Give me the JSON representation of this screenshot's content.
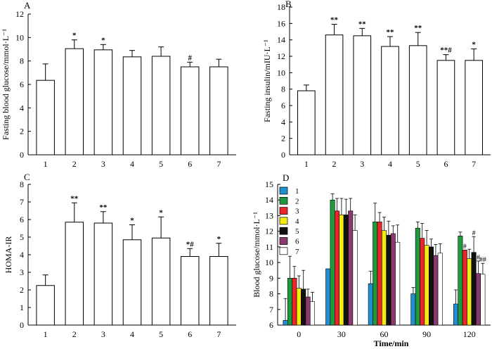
{
  "chart_data": [
    {
      "panel": "A",
      "type": "bar",
      "categories": [
        "1",
        "2",
        "3",
        "4",
        "5",
        "6",
        "7"
      ],
      "values": [
        6.35,
        9.05,
        8.95,
        8.35,
        8.4,
        7.5,
        7.5
      ],
      "errors": [
        1.4,
        0.75,
        0.45,
        0.55,
        0.8,
        0.4,
        0.65
      ],
      "annotations": [
        "",
        "*",
        "*",
        "",
        "",
        "#",
        ""
      ],
      "xlabel": "",
      "ylabel": "Fasting blood glucose/mmol·L⁻¹",
      "ylim": [
        0,
        12
      ],
      "yticks": [
        "0",
        "2",
        "4",
        "6",
        "8",
        "10",
        "12"
      ]
    },
    {
      "panel": "B",
      "type": "bar",
      "categories": [
        "1",
        "2",
        "3",
        "4",
        "5",
        "6",
        "7"
      ],
      "values": [
        7.8,
        14.6,
        14.5,
        13.2,
        13.3,
        11.5,
        11.5
      ],
      "errors": [
        0.7,
        1.3,
        0.9,
        1.2,
        1.6,
        0.7,
        1.4
      ],
      "annotations": [
        "",
        "**",
        "**",
        "**",
        "**",
        "**#",
        "*"
      ],
      "xlabel": "",
      "ylabel": "Fasting insulin/mIU·L⁻¹",
      "ylim": [
        0,
        18
      ],
      "yticks": [
        "0",
        "2",
        "4",
        "6",
        "8",
        "10",
        "12",
        "14",
        "16",
        "18"
      ]
    },
    {
      "panel": "C",
      "type": "bar",
      "categories": [
        "1",
        "2",
        "3",
        "4",
        "5",
        "6",
        "7"
      ],
      "values": [
        2.25,
        5.85,
        5.8,
        4.85,
        4.95,
        3.9,
        3.9
      ],
      "errors": [
        0.6,
        1.1,
        0.65,
        0.85,
        1.2,
        0.45,
        0.75
      ],
      "annotations": [
        "",
        "**",
        "**",
        "*",
        "*",
        "*#",
        "*"
      ],
      "xlabel": "",
      "ylabel": "HOMA-IR",
      "ylim": [
        0,
        8
      ],
      "yticks": [
        "0",
        "1",
        "2",
        "3",
        "4",
        "5",
        "6",
        "7",
        "8"
      ]
    },
    {
      "panel": "D",
      "type": "bar",
      "categories": [
        "0",
        "30",
        "60",
        "90",
        "120"
      ],
      "xlabel": "Time/min",
      "ylabel": "Blood glucose/mmol·L⁻¹",
      "ylim": [
        6,
        15
      ],
      "yticks": [
        "6",
        "7",
        "8",
        "9",
        "10",
        "11",
        "12",
        "13",
        "14",
        "15"
      ],
      "series": [
        {
          "name": "1",
          "color": "#1f8fd0",
          "values": [
            6.3,
            9.6,
            8.65,
            8.0,
            7.35
          ],
          "errors": [
            1.4,
            0.0,
            0.8,
            0.4,
            0.9
          ]
        },
        {
          "name": "2",
          "color": "#1e9a3c",
          "values": [
            9.0,
            14.0,
            12.6,
            12.2,
            11.7
          ],
          "errors": [
            1.4,
            0.4,
            1.2,
            0.4,
            0.25
          ]
        },
        {
          "name": "3",
          "color": "#e8262b",
          "values": [
            9.0,
            13.3,
            12.6,
            11.55,
            10.8
          ],
          "errors": [
            0.75,
            0.8,
            0.6,
            0.95,
            0.0
          ]
        },
        {
          "name": "4",
          "color": "#f4ea14",
          "values": [
            8.35,
            13.05,
            12.05,
            11.1,
            10.25
          ],
          "errors": [
            0.8,
            1.05,
            0.85,
            0.95,
            0.6
          ]
        },
        {
          "name": "5",
          "color": "#111111",
          "values": [
            8.3,
            13.05,
            11.75,
            11.0,
            10.65
          ],
          "errors": [
            1.2,
            1.0,
            0.9,
            0.5,
            1.0
          ]
        },
        {
          "name": "6",
          "color": "#8a3a70",
          "values": [
            7.8,
            13.3,
            11.85,
            10.45,
            9.3
          ],
          "errors": [
            0.5,
            0.8,
            0.5,
            0.7,
            0.8
          ]
        },
        {
          "name": "7",
          "color": "#ffffff",
          "values": [
            7.5,
            12.05,
            11.3,
            10.6,
            9.25
          ],
          "errors": [
            0.6,
            1.0,
            1.1,
            0.6,
            0.7
          ]
        }
      ],
      "annotations": [
        {
          "group": "120",
          "series": "3",
          "text": "#"
        },
        {
          "group": "120",
          "series": "5",
          "text": "#"
        },
        {
          "group": "120",
          "series": "6",
          "text": "#"
        },
        {
          "group": "120",
          "series": "7",
          "text": "##"
        }
      ]
    }
  ]
}
